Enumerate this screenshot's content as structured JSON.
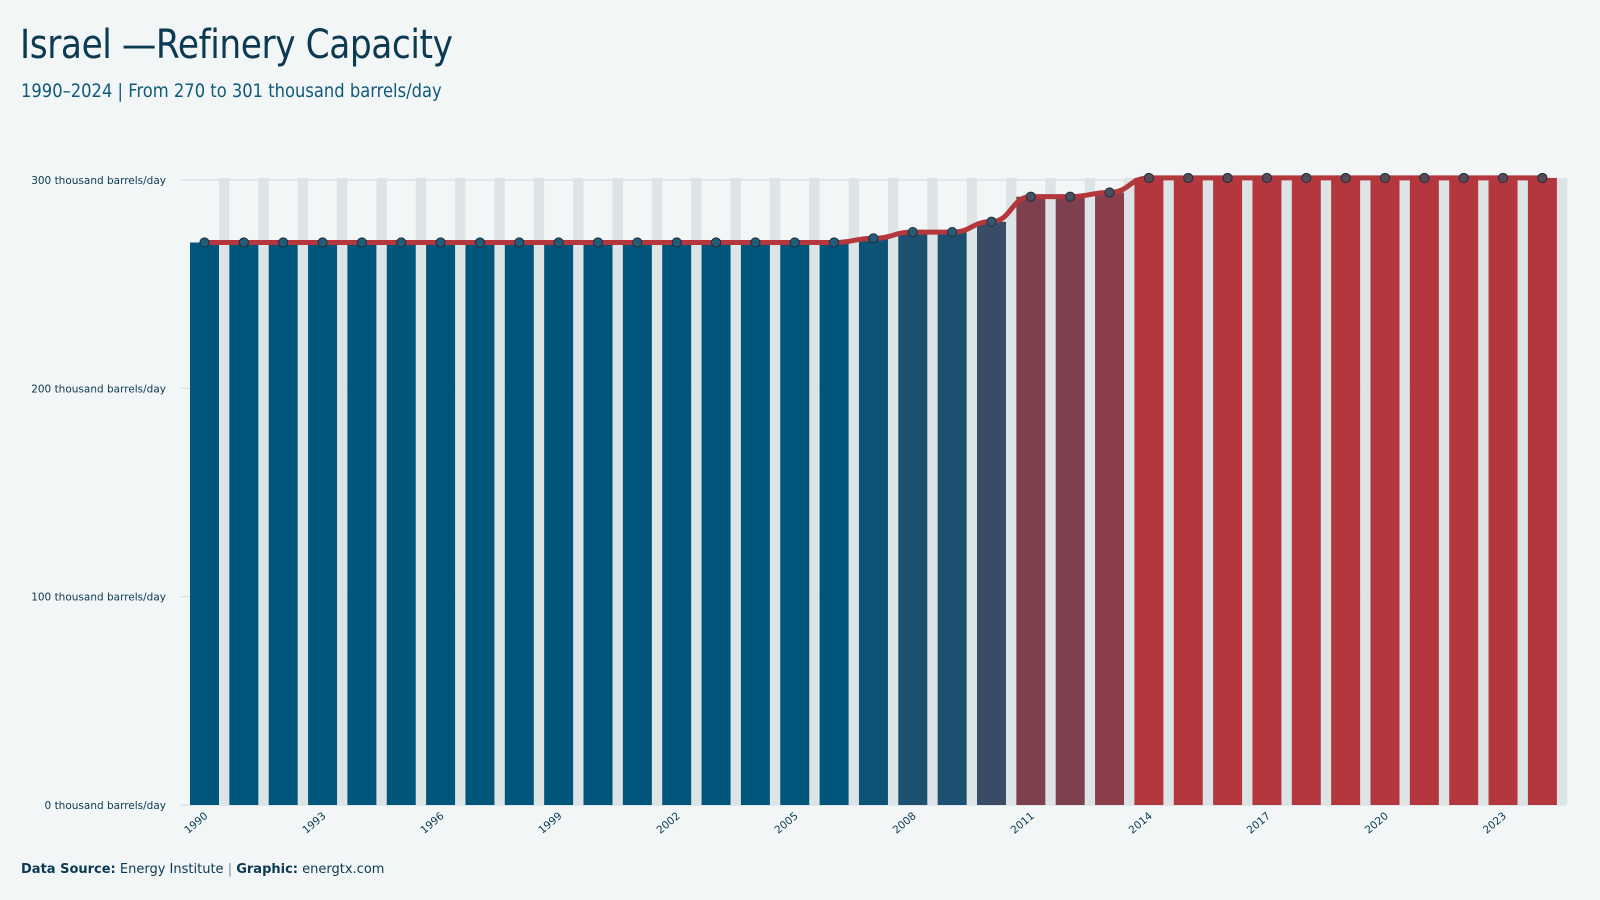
{
  "header": {
    "title": "Israel —Refinery Capacity",
    "subtitle": "1990–2024 | From 270 to 301 thousand barrels/day"
  },
  "footer": {
    "source_label": "Data Source:",
    "source_value": "Energy Institute",
    "separator": "|",
    "graphic_label": "Graphic:",
    "graphic_value": "energtx.com"
  },
  "colors": {
    "background": "#f2f6f6",
    "bar_start": "#00557a",
    "bar_end": "#b3373c",
    "line": "#b3373c",
    "grid": "#d9dfe1",
    "marker_stroke": "#1a2f3d"
  },
  "chart_data": {
    "type": "bar",
    "title": "Israel —Refinery Capacity",
    "subtitle": "1990–2024 | From 270 to 301 thousand barrels/day",
    "unit": "thousand barrels/day",
    "categories": [
      1990,
      1991,
      1992,
      1993,
      1994,
      1995,
      1996,
      1997,
      1998,
      1999,
      2000,
      2001,
      2002,
      2003,
      2004,
      2005,
      2006,
      2007,
      2008,
      2009,
      2010,
      2011,
      2012,
      2013,
      2014,
      2015,
      2016,
      2017,
      2018,
      2019,
      2020,
      2021,
      2022,
      2023,
      2024
    ],
    "values": [
      270,
      270,
      270,
      270,
      270,
      270,
      270,
      270,
      270,
      270,
      270,
      270,
      270,
      270,
      270,
      270,
      270,
      272,
      275,
      275,
      280,
      292,
      292,
      294,
      301,
      301,
      301,
      301,
      301,
      301,
      301,
      301,
      301,
      301,
      301
    ],
    "x_tick_labels": [
      "1990",
      "1993",
      "1996",
      "1999",
      "2002",
      "2005",
      "2008",
      "2011",
      "2014",
      "2017",
      "2020",
      "2023"
    ],
    "y_ticks": [
      0,
      100,
      200,
      300
    ],
    "y_tick_labels": [
      "0 thousand barrels/day",
      "100 thousand barrels/day",
      "200 thousand barrels/day",
      "300 thousand barrels/day"
    ],
    "ylim": [
      0,
      300
    ],
    "grid": true,
    "overlay_line": true,
    "xlabel": "",
    "ylabel": ""
  }
}
